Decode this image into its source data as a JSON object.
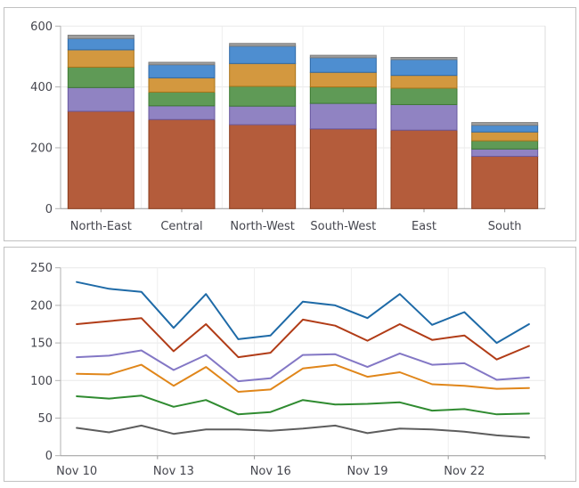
{
  "panels": {
    "background": "#ffffff",
    "border_color": "#c1c1c1",
    "text_color": "#45464e",
    "grid_color": "#e9e9e9",
    "axis_color": "#999999"
  },
  "chart_data": [
    {
      "type": "bar",
      "stacked": true,
      "title": "",
      "xlabel": "",
      "ylabel": "",
      "categories": [
        "North-East",
        "Central",
        "North-West",
        "South-West",
        "East",
        "South"
      ],
      "series": [
        {
          "name": "segment-1-brown",
          "color": "#b45c3b",
          "border": "#8a3c1d",
          "values": [
            320,
            293,
            276,
            262,
            258,
            172
          ]
        },
        {
          "name": "segment-2-purple",
          "color": "#9083c2",
          "border": "#68589f",
          "values": [
            78,
            45,
            61,
            84,
            84,
            24
          ]
        },
        {
          "name": "segment-3-green",
          "color": "#5f9a56",
          "border": "#3d7a33",
          "values": [
            67,
            45,
            65,
            54,
            54,
            27
          ]
        },
        {
          "name": "segment-4-orange",
          "color": "#d3983f",
          "border": "#aa741a",
          "values": [
            57,
            47,
            75,
            48,
            42,
            29
          ]
        },
        {
          "name": "segment-5-blue",
          "color": "#4e8ed0",
          "border": "#2f6aa8",
          "values": [
            37,
            43,
            57,
            48,
            52,
            22
          ]
        },
        {
          "name": "segment-6-gray",
          "color": "#9e9e9e",
          "border": "#7d7d7d",
          "values": [
            11,
            8,
            9,
            8,
            7,
            9
          ]
        }
      ],
      "ylim": [
        0,
        600
      ],
      "y_tick_labels": [
        "0",
        "200",
        "400",
        "600"
      ],
      "grid": true,
      "legend": "none"
    },
    {
      "type": "line",
      "title": "",
      "xlabel": "",
      "ylabel": "",
      "x": [
        "Nov 10",
        "Nov 11",
        "Nov 12",
        "Nov 13",
        "Nov 14",
        "Nov 15",
        "Nov 16",
        "Nov 17",
        "Nov 18",
        "Nov 19",
        "Nov 20",
        "Nov 21",
        "Nov 22",
        "Nov 23",
        "Nov 24"
      ],
      "x_tick_labels": [
        "Nov 10",
        "Nov 13",
        "Nov 16",
        "Nov 19",
        "Nov 22"
      ],
      "x_tick_positions": [
        0,
        3,
        6,
        9,
        12
      ],
      "series": [
        {
          "name": "line-blue",
          "color": "#1e6aa7",
          "values": [
            231,
            222,
            218,
            170,
            215,
            155,
            160,
            205,
            200,
            183,
            215,
            174,
            191,
            150,
            175
          ]
        },
        {
          "name": "line-red",
          "color": "#b13c17",
          "values": [
            175,
            179,
            183,
            139,
            175,
            131,
            137,
            181,
            173,
            153,
            175,
            154,
            160,
            128,
            146
          ]
        },
        {
          "name": "line-purple",
          "color": "#8377c5",
          "values": [
            131,
            133,
            140,
            114,
            134,
            99,
            103,
            134,
            135,
            118,
            136,
            121,
            123,
            101,
            104
          ]
        },
        {
          "name": "line-orange",
          "color": "#e0861a",
          "values": [
            109,
            108,
            121,
            93,
            118,
            85,
            88,
            116,
            121,
            105,
            111,
            95,
            93,
            89,
            90
          ]
        },
        {
          "name": "line-green",
          "color": "#2f8b30",
          "values": [
            79,
            76,
            80,
            65,
            74,
            55,
            58,
            74,
            68,
            69,
            71,
            60,
            62,
            55,
            56
          ]
        },
        {
          "name": "line-gray",
          "color": "#5d5d5d",
          "values": [
            37,
            31,
            40,
            29,
            35,
            35,
            33,
            36,
            40,
            30,
            36,
            35,
            32,
            27,
            24
          ]
        }
      ],
      "ylim": [
        0,
        250
      ],
      "y_tick_labels": [
        "0",
        "50",
        "100",
        "150",
        "200",
        "250"
      ],
      "grid": true,
      "legend": "none"
    }
  ]
}
